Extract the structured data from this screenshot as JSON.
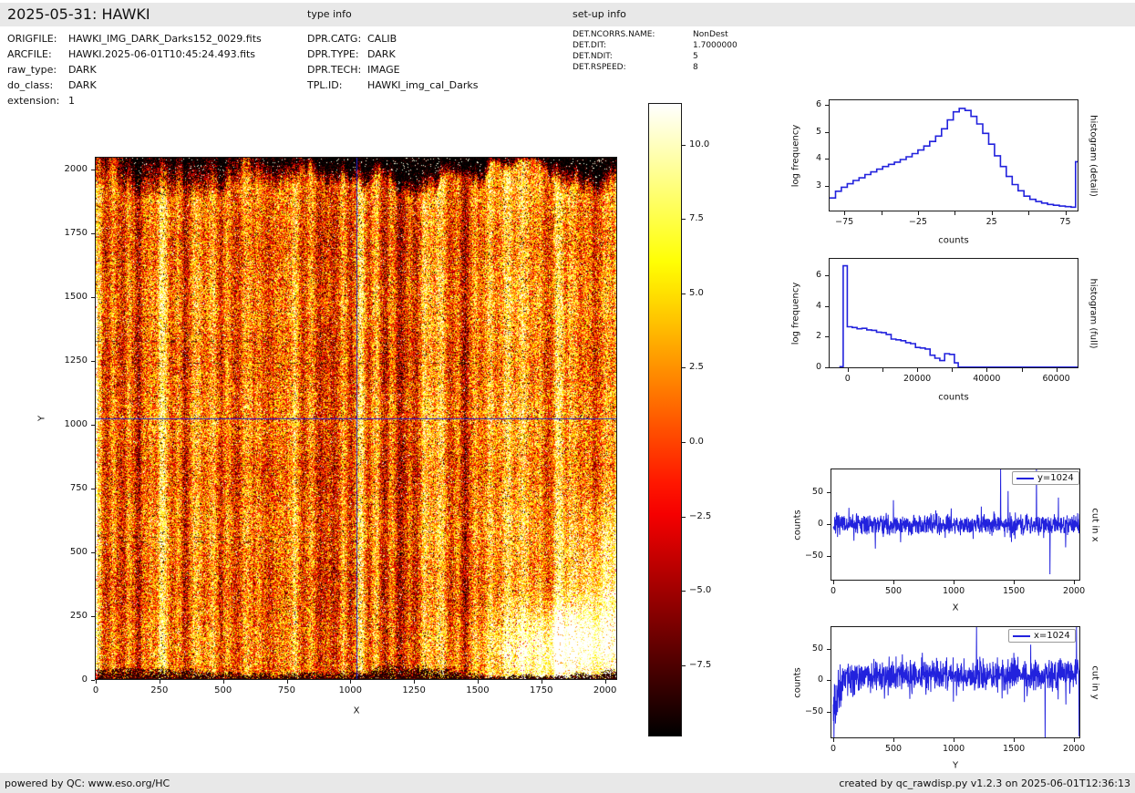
{
  "header": {
    "title": "2025-05-31: HAWKI",
    "type_info_label": "type info",
    "setup_info_label": "set-up info"
  },
  "file_info": {
    "rows": [
      {
        "label": "ORIGFILE:",
        "value": "HAWKI_IMG_DARK_Darks152_0029.fits"
      },
      {
        "label": "ARCFILE:",
        "value": "HAWKI.2025-06-01T10:45:24.493.fits"
      },
      {
        "label": "raw_type:",
        "value": "DARK"
      },
      {
        "label": "do_class:",
        "value": "DARK"
      },
      {
        "label": "extension:",
        "value": "1"
      }
    ]
  },
  "type_info": {
    "rows": [
      {
        "label": "DPR.CATG:",
        "value": "CALIB"
      },
      {
        "label": "DPR.TYPE:",
        "value": "DARK"
      },
      {
        "label": "DPR.TECH:",
        "value": "IMAGE"
      },
      {
        "label": "TPL.ID:",
        "value": "HAWKI_img_cal_Darks"
      }
    ]
  },
  "setup_info": {
    "rows": [
      {
        "label": "DET.NCORRS.NAME:",
        "value": "NonDest"
      },
      {
        "label": "DET.DIT:",
        "value": "1.7000000"
      },
      {
        "label": "DET.NDIT:",
        "value": "5"
      },
      {
        "label": "DET.RSPEED:",
        "value": "8"
      }
    ]
  },
  "footer": {
    "left": "powered by QC: www.eso.org/HC",
    "right": "created by qc_rawdisp.py v1.2.3 on 2025-06-01T12:36:13"
  },
  "colors": {
    "line_blue": "#2222dd",
    "crosshair_blue": "#2323c8",
    "strip_gray": "#e8e8e8",
    "spine_black": "#1a1a1a"
  },
  "chart_data": [
    {
      "id": "main-image",
      "type": "heatmap",
      "xlabel": "X",
      "ylabel": "Y",
      "xlim": [
        0,
        2048
      ],
      "ylim": [
        0,
        2048
      ],
      "xticks": [
        0,
        250,
        500,
        750,
        1000,
        1250,
        1500,
        1750,
        2000
      ],
      "yticks": [
        0,
        250,
        500,
        750,
        1000,
        1250,
        1500,
        1750,
        2000
      ],
      "colormap": "hot",
      "noise_seed": 42,
      "crosshair": {
        "x": 1024,
        "y": 1024
      },
      "features": [
        "vertical banding",
        "dark speckled top band",
        "black blob band at bottom",
        "bright patch bottom right",
        "dashed dark rows"
      ],
      "colorbar": {
        "vmin": -9.9,
        "vmax": 11.4,
        "tick_values": [
          10.0,
          7.5,
          5.0,
          2.5,
          0.0,
          -2.5,
          -5.0,
          -7.5
        ],
        "tick_labels": [
          "10.0",
          "7.5",
          "5.0",
          "2.5",
          "0.0",
          "−2.5",
          "−5.0",
          "−7.5"
        ]
      }
    },
    {
      "id": "histogram-detail",
      "type": "step-histogram",
      "side_label": "histogram (detail)",
      "xlabel": "counts",
      "ylabel": "log frequency",
      "xlim": [
        -85,
        84
      ],
      "ylim": [
        2.05,
        6.18
      ],
      "xticks": [
        {
          "v": -75,
          "label": "−75"
        },
        {
          "v": -50,
          "label": ""
        },
        {
          "v": -25,
          "label": "−25"
        },
        {
          "v": 0,
          "label": ""
        },
        {
          "v": 25,
          "label": "25"
        },
        {
          "v": 50,
          "label": ""
        },
        {
          "v": 75,
          "label": "75"
        }
      ],
      "yticks": [
        {
          "v": 3,
          "label": "3"
        },
        {
          "v": 4,
          "label": "4"
        },
        {
          "v": 5,
          "label": "5"
        },
        {
          "v": 6,
          "label": "6"
        }
      ],
      "step_edges": [
        -85,
        -81,
        -77,
        -73,
        -69,
        -65,
        -61,
        -57,
        -53,
        -49,
        -45,
        -41,
        -37,
        -33,
        -29,
        -25,
        -21,
        -17,
        -13,
        -9,
        -5,
        -1,
        3,
        7,
        11,
        15,
        19,
        23,
        27,
        31,
        35,
        39,
        43,
        47,
        51,
        55,
        59,
        63,
        67,
        71,
        75,
        79,
        82,
        84
      ],
      "step_levels": [
        2.55,
        2.8,
        2.95,
        3.08,
        3.2,
        3.3,
        3.42,
        3.52,
        3.62,
        3.72,
        3.8,
        3.88,
        3.98,
        4.08,
        4.2,
        4.33,
        4.48,
        4.65,
        4.85,
        5.12,
        5.45,
        5.75,
        5.88,
        5.8,
        5.58,
        5.3,
        4.95,
        4.55,
        4.12,
        3.72,
        3.35,
        3.05,
        2.82,
        2.62,
        2.5,
        2.42,
        2.36,
        2.31,
        2.28,
        2.25,
        2.23,
        2.21,
        3.9
      ]
    },
    {
      "id": "histogram-full",
      "type": "step-histogram",
      "side_label": "histogram (full)",
      "xlabel": "counts",
      "ylabel": "log frequency",
      "xlim": [
        -5200,
        66400
      ],
      "ylim": [
        -0.05,
        7.07
      ],
      "xticks": [
        {
          "v": 0,
          "label": "0"
        },
        {
          "v": 10000,
          "label": ""
        },
        {
          "v": 20000,
          "label": "20000"
        },
        {
          "v": 30000,
          "label": ""
        },
        {
          "v": 40000,
          "label": "40000"
        },
        {
          "v": 50000,
          "label": ""
        },
        {
          "v": 60000,
          "label": "60000"
        }
      ],
      "yticks": [
        {
          "v": 0,
          "label": "0"
        },
        {
          "v": 2,
          "label": "2"
        },
        {
          "v": 4,
          "label": "4"
        },
        {
          "v": 6,
          "label": "6"
        }
      ],
      "step_edges": [
        -2400,
        -1300,
        -100,
        1300,
        2700,
        4100,
        5500,
        6900,
        8300,
        9700,
        11100,
        12500,
        13900,
        15300,
        16700,
        18100,
        19500,
        20900,
        22300,
        23700,
        25100,
        26500,
        27900,
        29300,
        30700,
        31800,
        66400
      ],
      "step_levels": [
        0.05,
        6.62,
        2.65,
        2.6,
        2.52,
        2.55,
        2.45,
        2.42,
        2.3,
        2.27,
        2.15,
        1.85,
        1.8,
        1.74,
        1.62,
        1.55,
        1.3,
        1.27,
        1.2,
        0.8,
        0.6,
        0.45,
        0.9,
        0.85,
        0.3,
        0.02
      ]
    },
    {
      "id": "cut-in-x",
      "type": "noisy-line",
      "side_label": "cut in x",
      "legend": "y=1024",
      "xlabel": "X",
      "ylabel": "counts",
      "xlim": [
        -15,
        2052
      ],
      "ylim": [
        -88,
        86
      ],
      "xticks": [
        {
          "v": 0,
          "label": "0"
        },
        {
          "v": 500,
          "label": "500"
        },
        {
          "v": 1000,
          "label": "1000"
        },
        {
          "v": 1500,
          "label": "1500"
        },
        {
          "v": 2000,
          "label": "2000"
        }
      ],
      "yticks": [
        {
          "v": -50,
          "label": "−50"
        },
        {
          "v": 0,
          "label": "0"
        },
        {
          "v": 50,
          "label": "50"
        }
      ],
      "noise": {
        "seed": 7,
        "mean": 0,
        "std": 8,
        "dip_probability": 0.012,
        "dip_amplitude": 22,
        "start_ramp": null
      },
      "spikes": [
        {
          "x": 130,
          "v": 26
        },
        {
          "x": 350,
          "v": -38
        },
        {
          "x": 500,
          "v": 38
        },
        {
          "x": 560,
          "v": -28
        },
        {
          "x": 980,
          "v": 25
        },
        {
          "x": 1230,
          "v": 28
        },
        {
          "x": 1390,
          "v": 130
        },
        {
          "x": 1452,
          "v": 52
        },
        {
          "x": 1688,
          "v": 120
        },
        {
          "x": 1800,
          "v": -78
        },
        {
          "x": 1870,
          "v": 42
        },
        {
          "x": 1930,
          "v": -36
        }
      ]
    },
    {
      "id": "cut-in-y",
      "type": "noisy-line",
      "side_label": "cut in y",
      "legend": "x=1024",
      "xlabel": "Y",
      "ylabel": "counts",
      "xlim": [
        -15,
        2052
      ],
      "ylim": [
        -93,
        85
      ],
      "xticks": [
        {
          "v": 0,
          "label": "0"
        },
        {
          "v": 500,
          "label": "500"
        },
        {
          "v": 1000,
          "label": "1000"
        },
        {
          "v": 1500,
          "label": "1500"
        },
        {
          "v": 2000,
          "label": "2000"
        }
      ],
      "yticks": [
        {
          "v": -50,
          "label": "−50"
        },
        {
          "v": 0,
          "label": "0"
        },
        {
          "v": 50,
          "label": "50"
        }
      ],
      "noise": {
        "seed": 11,
        "mean": 8,
        "std": 12,
        "dip_probability": 0.05,
        "dip_amplitude": 38,
        "start_ramp": {
          "until": 92,
          "from": -75
        }
      },
      "spikes": [
        {
          "x": 740,
          "v": 44
        },
        {
          "x": 1190,
          "v": 130
        },
        {
          "x": 1505,
          "v": 36
        },
        {
          "x": 1640,
          "v": 57
        },
        {
          "x": 1760,
          "v": -130
        },
        {
          "x": 2020,
          "v": 130
        },
        {
          "x": 2042,
          "v": -90
        }
      ]
    }
  ]
}
